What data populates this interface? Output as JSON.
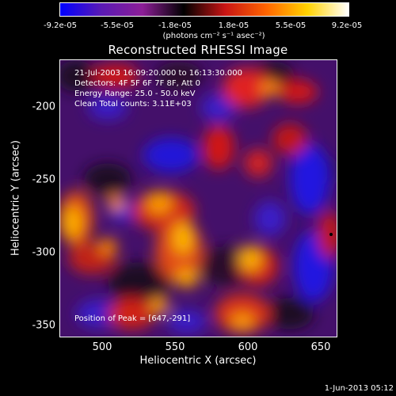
{
  "colorbar": {
    "tick_labels": [
      "-9.2e-05",
      "-5.5e-05",
      "-1.8e-05",
      "1.8e-05",
      "5.5e-05",
      "9.2e-05"
    ],
    "units_label": "(photons cm⁻² s⁻¹ asec⁻²)",
    "gradient_colors": [
      "#0000ff",
      "#5a1ab4",
      "#8c1e96",
      "#000000",
      "#c81414",
      "#ff6400",
      "#ffd200",
      "#ffffff"
    ]
  },
  "plot": {
    "title": "Reconstructed RHESSI Image",
    "info_lines": [
      "21-Jul-2003 16:09:20.000 to 16:13:30.000",
      "Detectors: 4F 5F 6F 7F 8F, Att 0",
      "Energy Range: 25.0 - 50.0 keV",
      "Clean     Total counts: 3.11E+03"
    ],
    "peak_label": "Position of Peak = [647,-291]",
    "x_axis": {
      "title": "Heliocentric X (arcsec)",
      "tick_labels": [
        "500",
        "550",
        "600",
        "650"
      ],
      "range": [
        470,
        662
      ]
    },
    "y_axis": {
      "title": "Heliocentric Y (arcsec)",
      "tick_labels": [
        "-200",
        "-250",
        "-300",
        "-350"
      ],
      "range": [
        -362,
        -170
      ]
    }
  },
  "footer": {
    "datestamp": "1-Jun-2013 05:12"
  }
}
